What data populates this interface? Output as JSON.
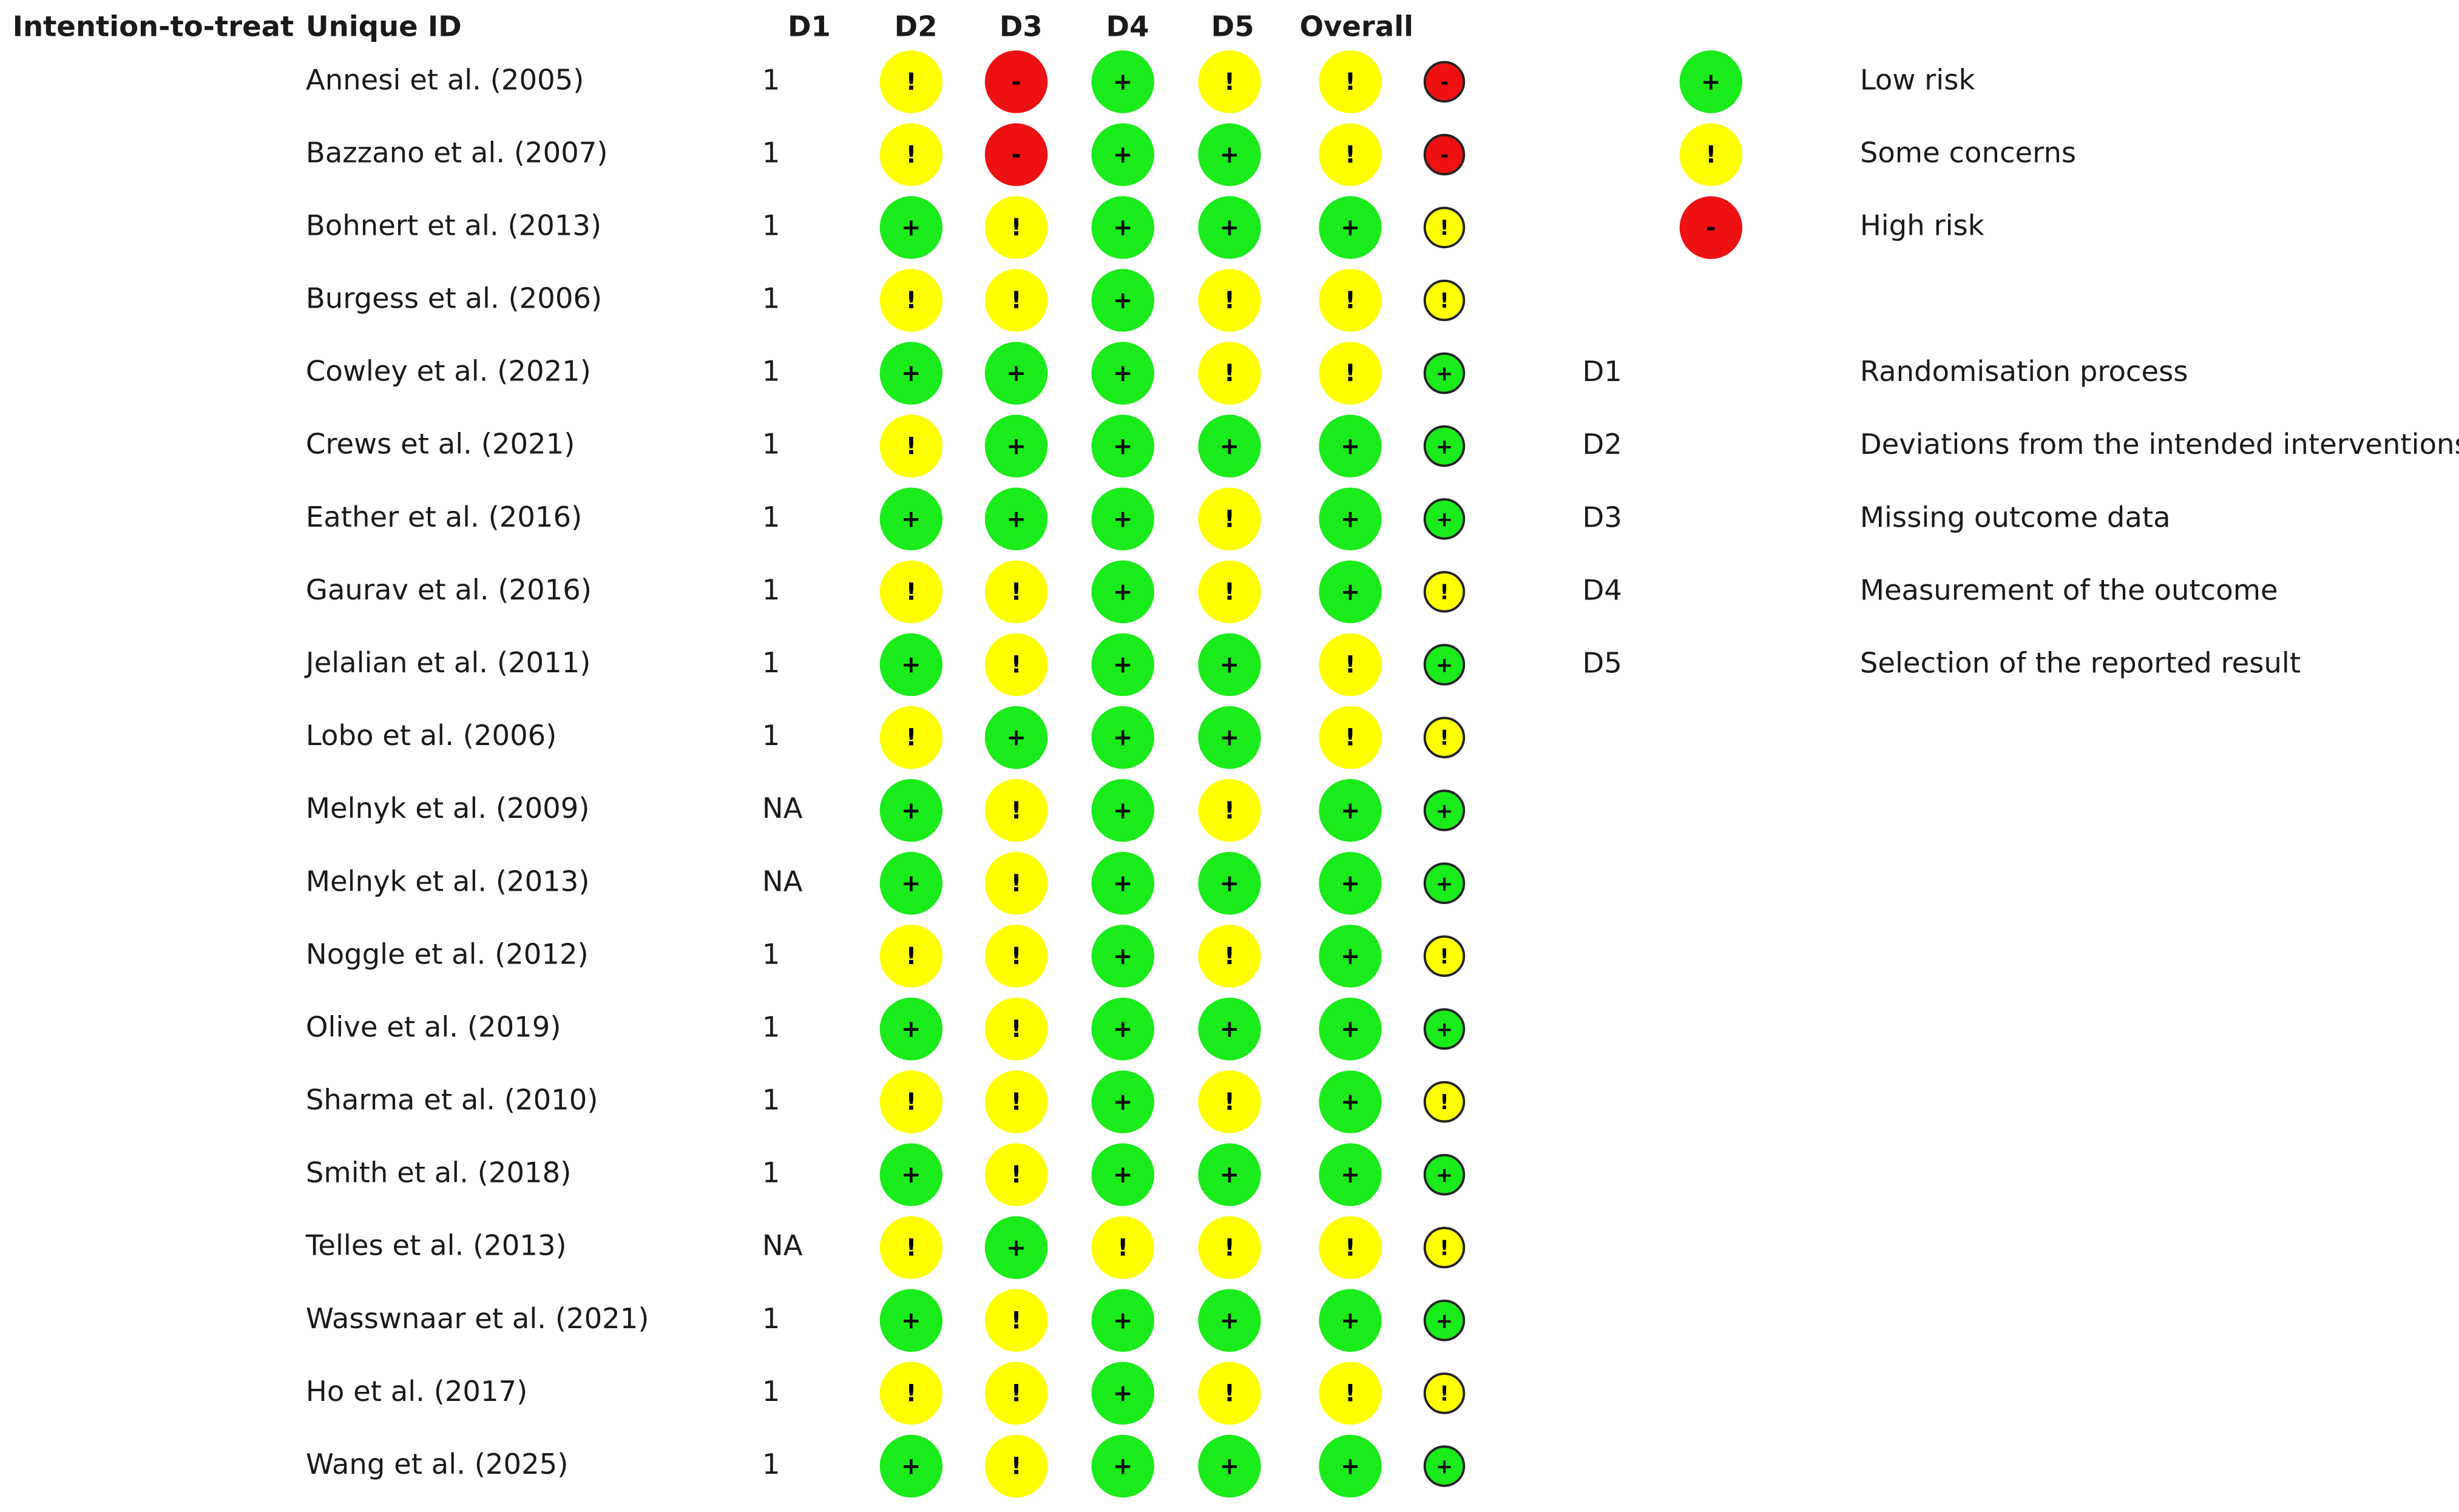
{
  "headers": [
    "Intention-to-treat",
    "Unique ID",
    "D1",
    "D2",
    "D3",
    "D4",
    "D5",
    "Overall"
  ],
  "rows": [
    {
      "id": "Annesi et al. (2005)",
      "value": "1",
      "judgements": [
        "!",
        "-",
        "+",
        "!",
        "!"
      ],
      "summary": "-"
    },
    {
      "id": "Bazzano et al. (2007)",
      "value": "1",
      "judgements": [
        "!",
        "-",
        "+",
        "+",
        "!"
      ],
      "summary": "-"
    },
    {
      "id": "Bohnert et al. (2013)",
      "value": "1",
      "judgements": [
        "+",
        "!",
        "+",
        "+",
        "+"
      ],
      "summary": "!"
    },
    {
      "id": "Burgess et al. (2006)",
      "value": "1",
      "judgements": [
        "!",
        "!",
        "+",
        "!",
        "!"
      ],
      "summary": "!"
    },
    {
      "id": "Cowley et al. (2021)",
      "value": "1",
      "judgements": [
        "+",
        "+",
        "+",
        "!",
        "!"
      ],
      "summary": "+"
    },
    {
      "id": "Crews et al. (2021)",
      "value": "1",
      "judgements": [
        "!",
        "+",
        "+",
        "+",
        "+"
      ],
      "summary": "+"
    },
    {
      "id": "Eather et al. (2016)",
      "value": "1",
      "judgements": [
        "+",
        "+",
        "+",
        "!",
        "+"
      ],
      "summary": "+"
    },
    {
      "id": "Gaurav et al. (2016)",
      "value": "1",
      "judgements": [
        "!",
        "!",
        "+",
        "!",
        "+"
      ],
      "summary": "!"
    },
    {
      "id": "Jelalian et al. (2011)",
      "value": "1",
      "judgements": [
        "+",
        "!",
        "+",
        "+",
        "!"
      ],
      "summary": "+"
    },
    {
      "id": "Lobo et al. (2006)",
      "value": "1",
      "judgements": [
        "!",
        "+",
        "+",
        "+",
        "!"
      ],
      "summary": "!"
    },
    {
      "id": "Melnyk et al. (2009)",
      "value": "NA",
      "judgements": [
        "+",
        "!",
        "+",
        "!",
        "+"
      ],
      "summary": "+"
    },
    {
      "id": "Melnyk et al. (2013)",
      "value": "NA",
      "judgements": [
        "+",
        "!",
        "+",
        "+",
        "+"
      ],
      "summary": "+"
    },
    {
      "id": "Noggle et al. (2012)",
      "value": "1",
      "judgements": [
        "!",
        "!",
        "+",
        "!",
        "+"
      ],
      "summary": "!"
    },
    {
      "id": "Olive et al. (2019)",
      "value": "1",
      "judgements": [
        "+",
        "!",
        "+",
        "+",
        "+"
      ],
      "summary": "+"
    },
    {
      "id": "Sharma et al. (2010)",
      "value": "1",
      "judgements": [
        "!",
        "!",
        "+",
        "!",
        "+"
      ],
      "summary": "!"
    },
    {
      "id": "Smith et al. (2018)",
      "value": "1",
      "judgements": [
        "+",
        "!",
        "+",
        "+",
        "+"
      ],
      "summary": "+"
    },
    {
      "id": "Telles et al. (2013)",
      "value": "NA",
      "judgements": [
        "!",
        "+",
        "!",
        "!",
        "!"
      ],
      "summary": "!"
    },
    {
      "id": "Wasswnaar et al. (2021)",
      "value": "1",
      "judgements": [
        "+",
        "!",
        "+",
        "+",
        "+"
      ],
      "summary": "+"
    },
    {
      "id": "Ho et al. (2017)",
      "value": "1",
      "judgements": [
        "!",
        "!",
        "+",
        "!",
        "!"
      ],
      "summary": "!"
    },
    {
      "id": "Wang et al. (2025)",
      "value": "1",
      "judgements": [
        "+",
        "!",
        "+",
        "+",
        "+"
      ],
      "summary": "+"
    }
  ],
  "legend": [
    {
      "symbol": "+",
      "label": "Low risk",
      "color": "#1aeb1a"
    },
    {
      "symbol": "!",
      "label": "Some concerns",
      "color": "#ffff00"
    },
    {
      "symbol": "-",
      "label": "High risk",
      "color": "#ee1111"
    }
  ],
  "domains": [
    {
      "code": "D1",
      "label": "Randomisation process"
    },
    {
      "code": "D2",
      "label": "Deviations from the intended interventions"
    },
    {
      "code": "D3",
      "label": "Missing outcome data"
    },
    {
      "code": "D4",
      "label": "Measurement of the outcome"
    },
    {
      "code": "D5",
      "label": "Selection of the reported result"
    }
  ]
}
